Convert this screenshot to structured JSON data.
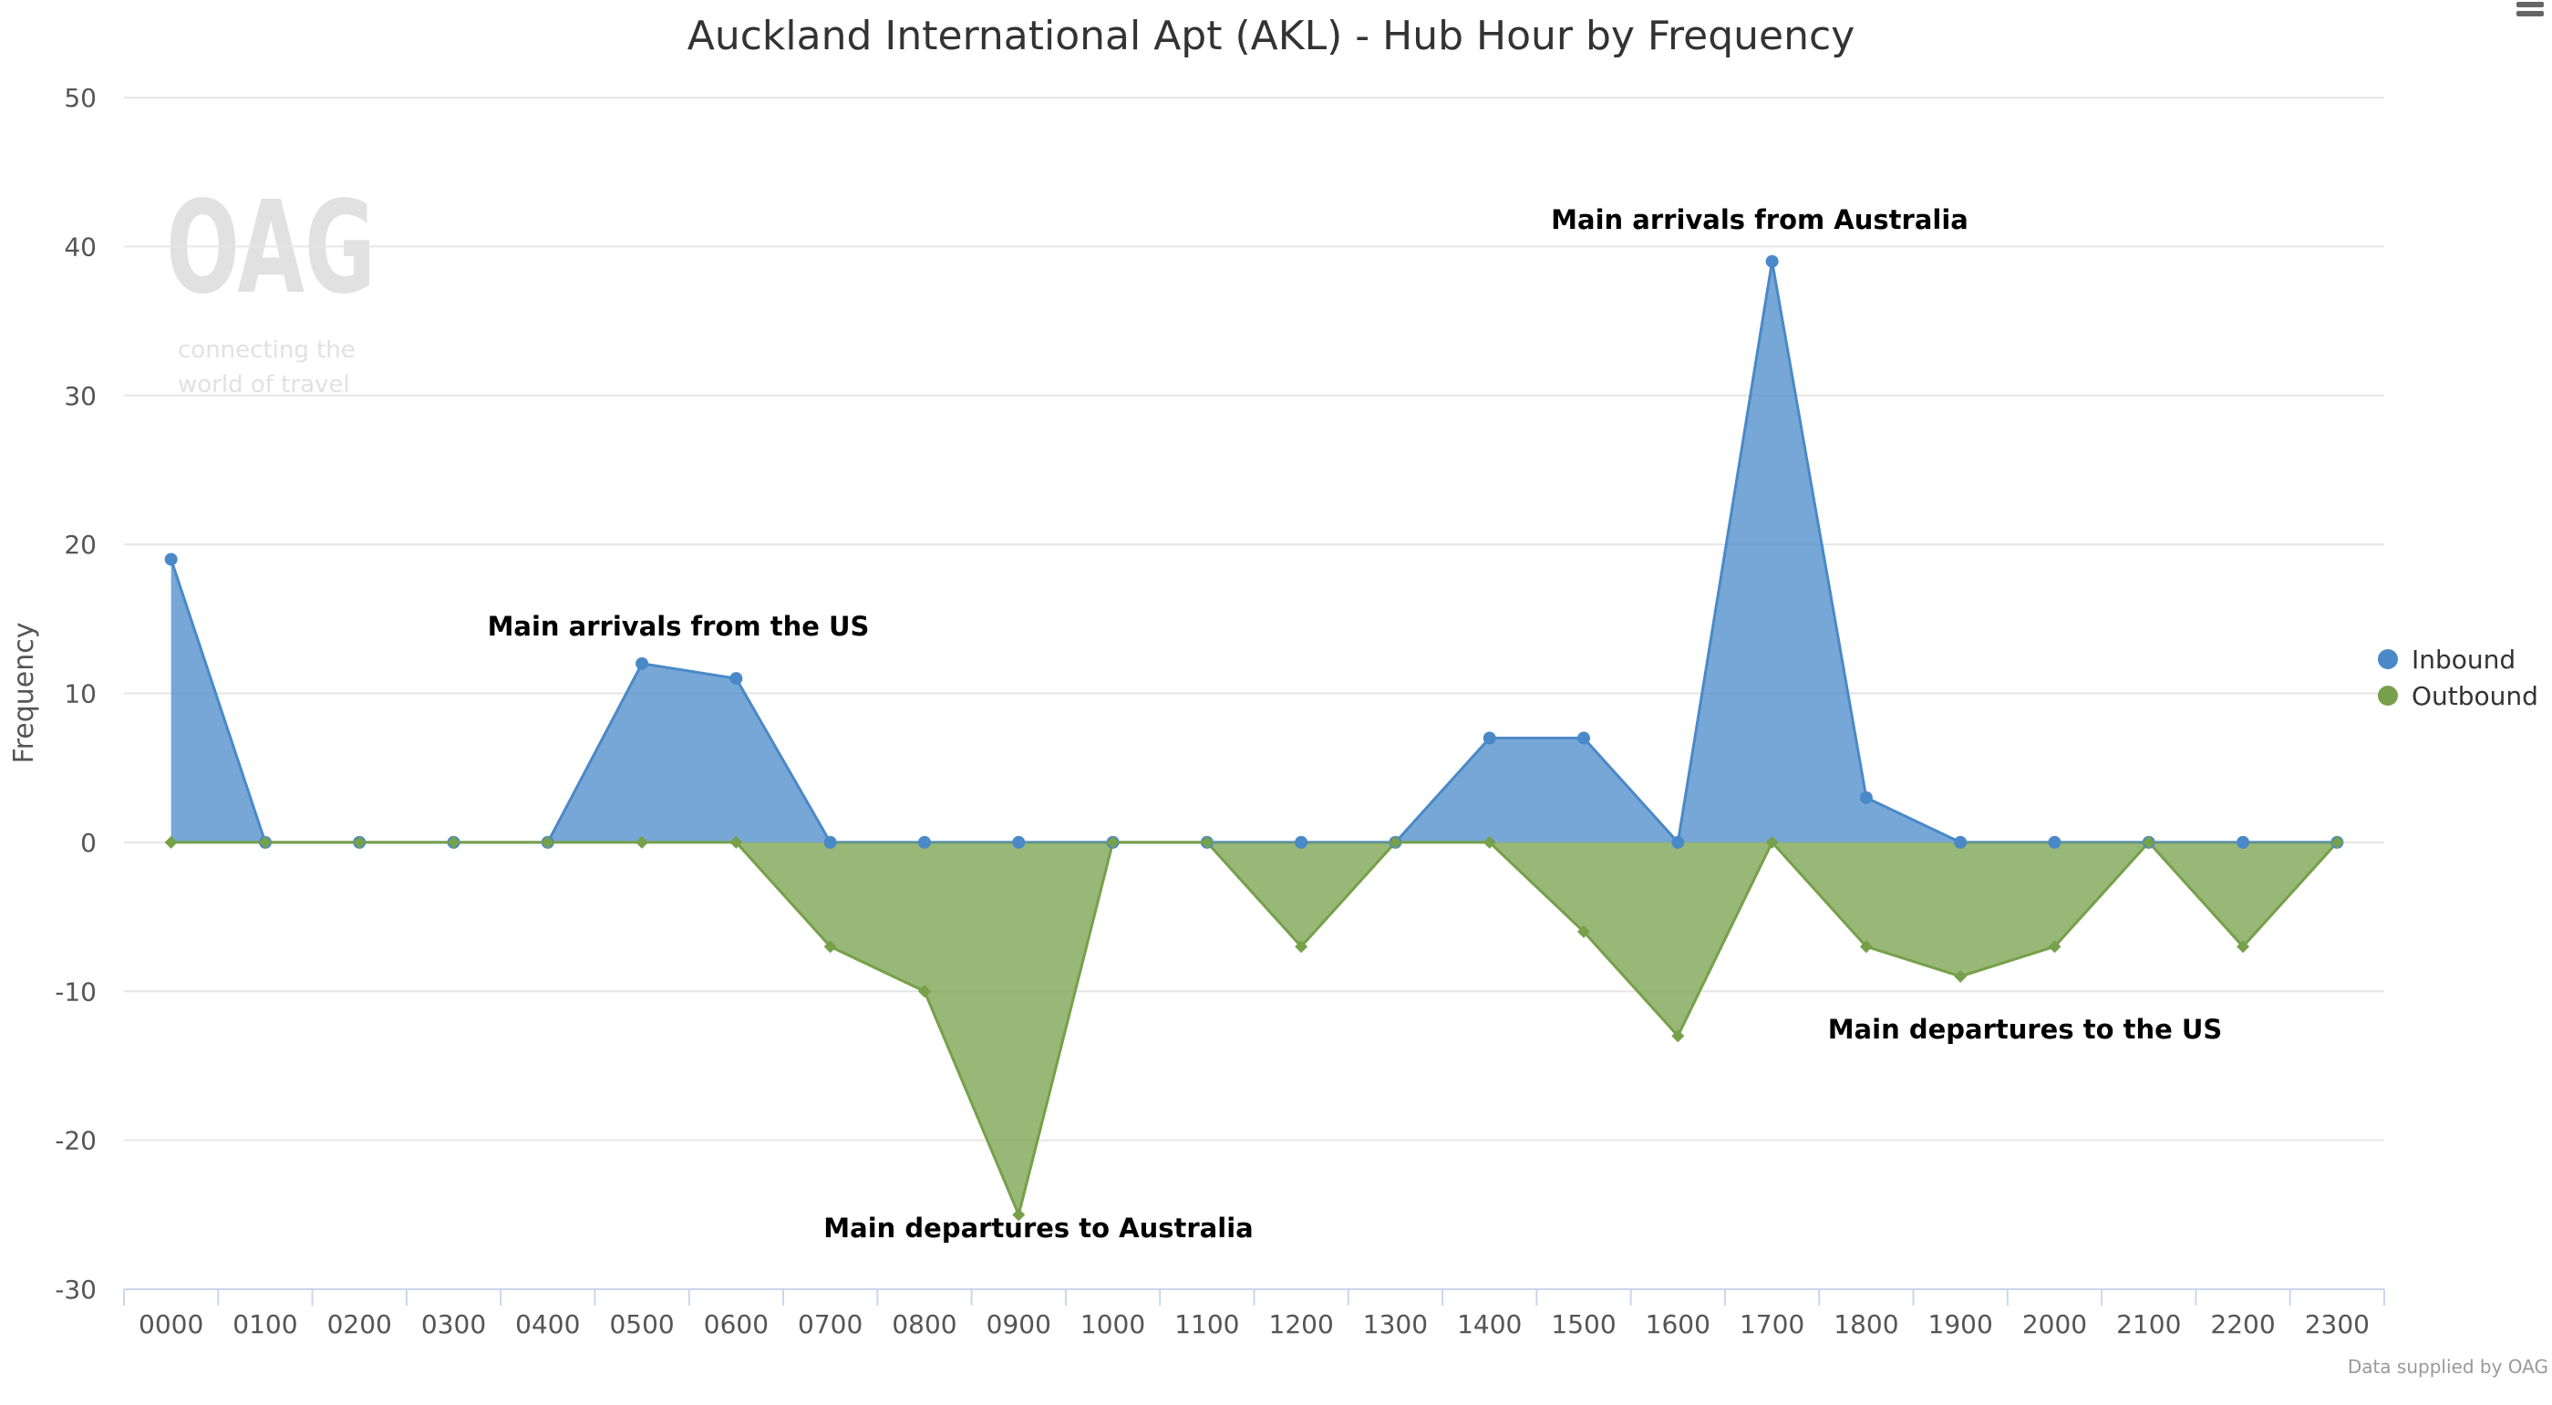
{
  "chart_data": {
    "type": "area",
    "title": "Auckland International Apt (AKL) - Hub Hour by Frequency",
    "xlabel": "",
    "ylabel": "Frequency",
    "ylim": [
      -30,
      50
    ],
    "yticks": [
      50,
      40,
      30,
      20,
      10,
      0,
      -10,
      -20,
      -30
    ],
    "grid": true,
    "legend_position": "right",
    "categories": [
      "0000",
      "0100",
      "0200",
      "0300",
      "0400",
      "0500",
      "0600",
      "0700",
      "0800",
      "0900",
      "1000",
      "1100",
      "1200",
      "1300",
      "1400",
      "1500",
      "1600",
      "1700",
      "1800",
      "1900",
      "2000",
      "2100",
      "2200",
      "2300"
    ],
    "series": [
      {
        "name": "Inbound",
        "color": "#4a89c8",
        "marker": "circle",
        "values": [
          19,
          0,
          0,
          0,
          0,
          12,
          11,
          0,
          0,
          0,
          0,
          0,
          0,
          0,
          7,
          7,
          0,
          39,
          3,
          0,
          0,
          0,
          0,
          0
        ]
      },
      {
        "name": "Outbound",
        "color": "#76a04a",
        "marker": "diamond",
        "values": [
          0,
          0,
          0,
          0,
          0,
          0,
          0,
          -7,
          -10,
          -25,
          0,
          0,
          -7,
          0,
          0,
          -6,
          -13,
          0,
          -7,
          -9,
          -7,
          0,
          -7,
          0
        ]
      }
    ],
    "annotations": [
      {
        "text": "Main arrivals from the US"
      },
      {
        "text": "Main arrivals from Australia"
      },
      {
        "text": "Main departures to the US"
      },
      {
        "text": "Main departures to Australia"
      }
    ]
  },
  "watermark": {
    "logo": "OAG",
    "tagline": "connecting the world of travel"
  },
  "credit": "Data supplied by OAG",
  "menu_icon": "hamburger-menu-icon"
}
